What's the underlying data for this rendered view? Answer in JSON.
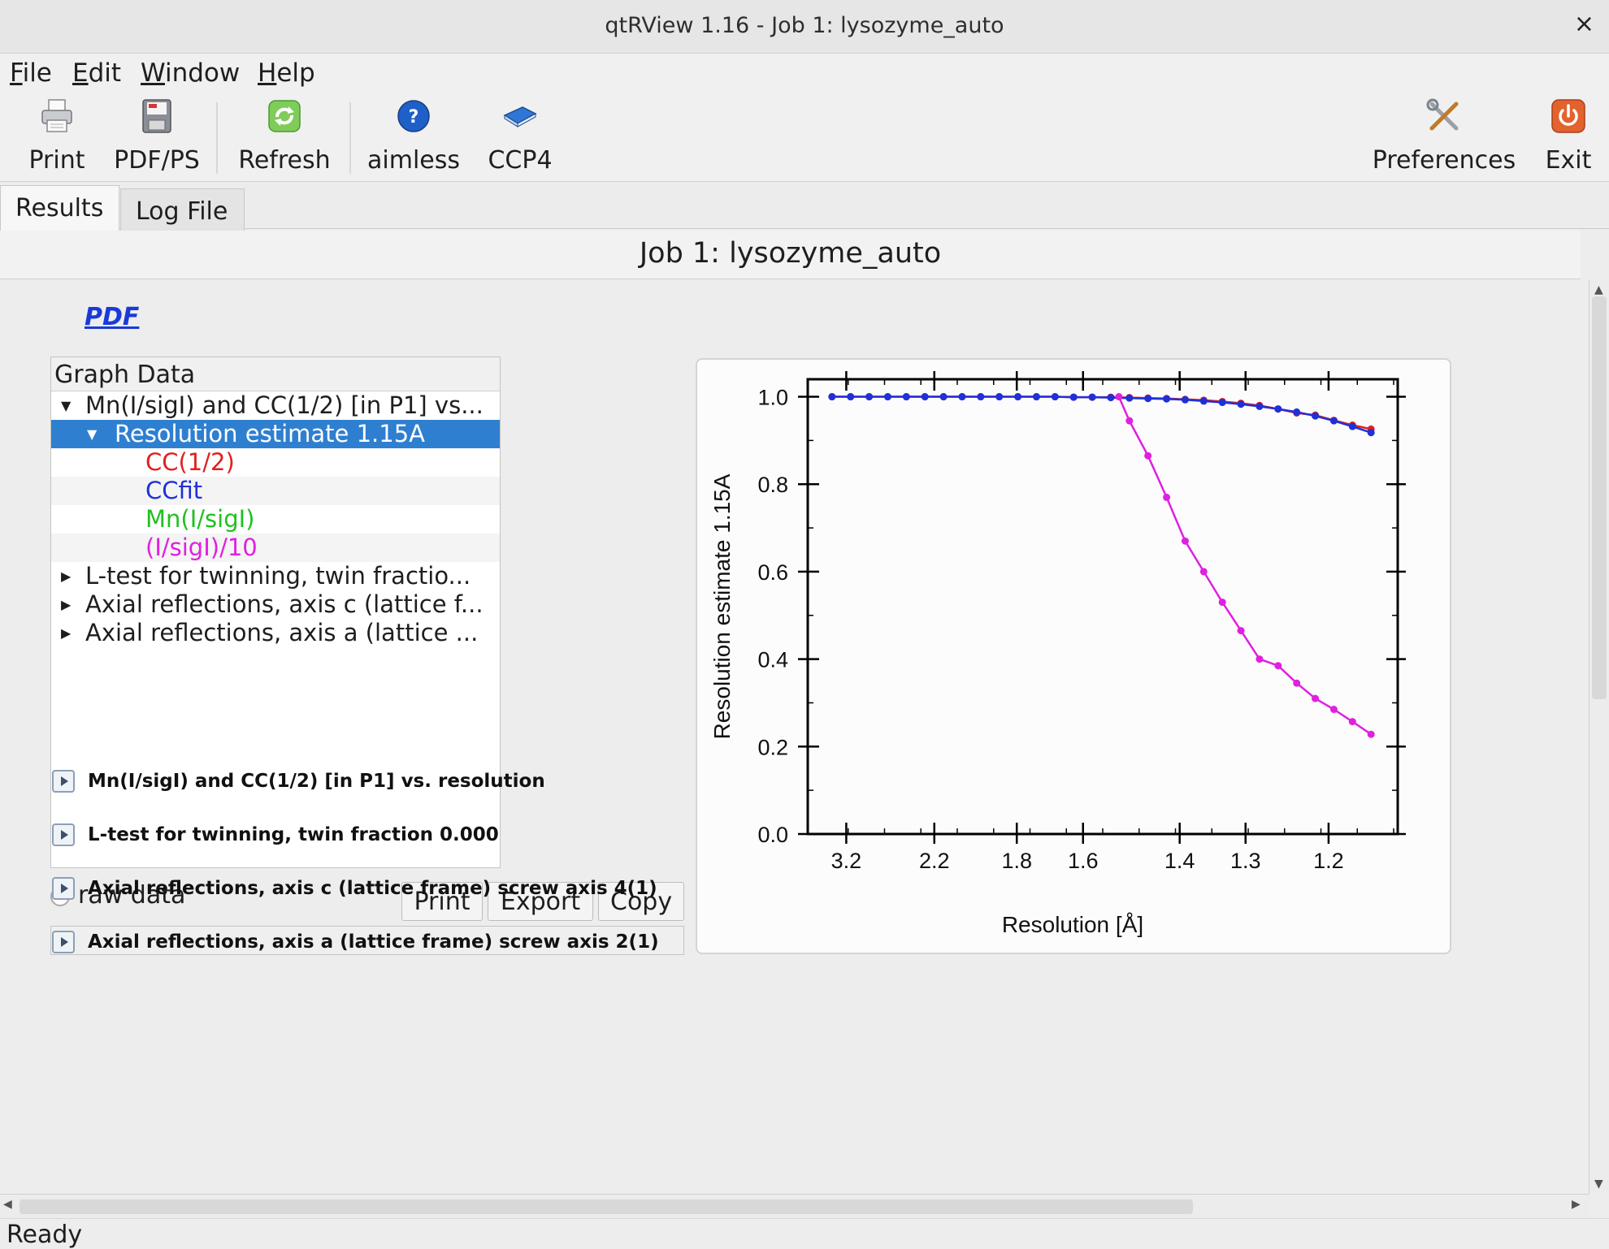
{
  "window": {
    "title": "qtRView 1.16 - Job 1: lysozyme_auto",
    "close_label": "×"
  },
  "menu": [
    {
      "u": "F",
      "rest": "ile"
    },
    {
      "u": "E",
      "rest": "dit"
    },
    {
      "u": "W",
      "rest": "indow"
    },
    {
      "u": "H",
      "rest": "elp"
    }
  ],
  "toolbar": {
    "print": "Print",
    "pdfps": "PDF/PS",
    "refresh": "Refresh",
    "aimless": "aimless",
    "ccp4": "CCP4",
    "preferences": "Preferences",
    "exit": "Exit"
  },
  "tabs": {
    "results": "Results",
    "logfile": "Log File"
  },
  "page_title": "Job 1: lysozyme_auto",
  "pdf_link": "PDF",
  "tree": {
    "header": "Graph Data",
    "rows": {
      "r0": "Mn(I/sigI) and CC(1/2) [in P1] vs...",
      "r1": "Resolution estimate 1.15A",
      "r2": "CC(1/2)",
      "r3": "CCfit",
      "r4": "Mn(I/sigI)",
      "r5": "(I/sigI)/10",
      "r6": "L-test for twinning, twin fractio...",
      "r7": "Axial reflections, axis c (lattice f...",
      "r8": "Axial reflections, axis a (lattice ..."
    },
    "colors": {
      "cc": "#e02020",
      "ccfit": "#2030d8",
      "mn": "#20c020",
      "isig": "#e020e0"
    }
  },
  "controls": {
    "raw_data": "raw data",
    "print": "Print",
    "export": "Export",
    "copy": "Copy"
  },
  "sections": {
    "s0": "Mn(I/sigI) and CC(1/2) [in P1] vs. resolution",
    "s1": "L-test for twinning, twin fraction 0.000",
    "s2": "Axial reflections, axis c (lattice frame) screw axis 4(1)",
    "s3": "Axial reflections, axis a (lattice frame) screw axis 2(1)"
  },
  "status": "Ready",
  "chart_data": {
    "type": "line",
    "title": "",
    "xlabel": "Resolution [Å]",
    "ylabel": "Resolution estimate 1.15A",
    "x_tick_labels": [
      "3.2",
      "2.2",
      "1.8",
      "1.6",
      "1.4",
      "1.3",
      "1.2"
    ],
    "y_tick_labels": [
      "0.0",
      "0.2",
      "0.4",
      "0.6",
      "0.8",
      "1.0"
    ],
    "x_range_1_over_d2": [
      0.05,
      0.78
    ],
    "ylim": [
      0.0,
      1.04
    ],
    "grid": false,
    "series": [
      {
        "name": "CC(1/2)",
        "color": "#e02020",
        "x_1_over_d2": [
          0.08,
          0.103,
          0.126,
          0.149,
          0.172,
          0.195,
          0.218,
          0.241,
          0.264,
          0.287,
          0.31,
          0.333,
          0.356,
          0.379,
          0.402,
          0.425,
          0.448,
          0.471,
          0.494,
          0.517,
          0.54,
          0.563,
          0.586,
          0.609,
          0.632,
          0.655,
          0.678,
          0.701,
          0.724,
          0.747
        ],
        "y": [
          1.0,
          1.0,
          1.0,
          1.0,
          1.0,
          1.0,
          1.0,
          1.0,
          1.0,
          1.0,
          1.0,
          1.0,
          1.0,
          0.999,
          0.999,
          0.999,
          0.998,
          0.997,
          0.996,
          0.994,
          0.992,
          0.989,
          0.985,
          0.98,
          0.972,
          0.963,
          0.958,
          0.946,
          0.935,
          0.926
        ]
      },
      {
        "name": "CCfit",
        "color": "#2030d8",
        "x_1_over_d2": [
          0.08,
          0.103,
          0.126,
          0.149,
          0.172,
          0.195,
          0.218,
          0.241,
          0.264,
          0.287,
          0.31,
          0.333,
          0.356,
          0.379,
          0.402,
          0.425,
          0.448,
          0.471,
          0.494,
          0.517,
          0.54,
          0.563,
          0.586,
          0.609,
          0.632,
          0.655,
          0.678,
          0.701,
          0.724,
          0.747
        ],
        "y": [
          1.0,
          1.0,
          1.0,
          1.0,
          1.0,
          1.0,
          1.0,
          1.0,
          1.0,
          1.0,
          1.0,
          1.0,
          1.0,
          0.999,
          0.999,
          0.998,
          0.997,
          0.996,
          0.995,
          0.993,
          0.99,
          0.987,
          0.983,
          0.978,
          0.972,
          0.965,
          0.956,
          0.945,
          0.932,
          0.918
        ]
      },
      {
        "name": "(I/sigI)/10",
        "color": "#e020e0",
        "x_1_over_d2": [
          0.435,
          0.448,
          0.471,
          0.494,
          0.517,
          0.54,
          0.563,
          0.586,
          0.609,
          0.632,
          0.655,
          0.678,
          0.701,
          0.724,
          0.747
        ],
        "y": [
          1.0,
          0.945,
          0.865,
          0.77,
          0.67,
          0.6,
          0.53,
          0.465,
          0.4,
          0.385,
          0.345,
          0.31,
          0.285,
          0.257,
          0.228
        ]
      }
    ]
  }
}
